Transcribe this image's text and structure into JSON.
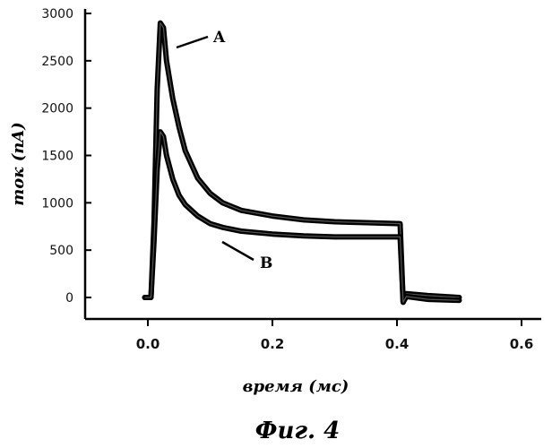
{
  "chart_data": {
    "type": "line",
    "xlabel": "время (мс)",
    "ylabel": "ток (nA)",
    "caption": "Фиг. 4",
    "xlim": [
      -0.1,
      0.6
    ],
    "ylim": [
      -200,
      3000
    ],
    "x_ticks": [
      0.0,
      0.2,
      0.4,
      0.6
    ],
    "x_tick_labels": [
      "0.0",
      "0.2",
      "0.4",
      "0.6"
    ],
    "y_ticks": [
      0,
      500,
      1000,
      1500,
      2000,
      2500,
      3000
    ],
    "y_tick_labels": [
      "0",
      "500",
      "1000",
      "1500",
      "2000",
      "2500",
      "3000"
    ],
    "grid": false,
    "legend": "none",
    "series": [
      {
        "name": "A",
        "color": "#000000",
        "x": [
          -0.005,
          0.0,
          0.005,
          0.01,
          0.015,
          0.02,
          0.025,
          0.03,
          0.04,
          0.05,
          0.06,
          0.08,
          0.1,
          0.12,
          0.15,
          0.2,
          0.25,
          0.3,
          0.35,
          0.405,
          0.41,
          0.415,
          0.45,
          0.5
        ],
        "y": [
          0,
          0,
          0,
          800,
          2200,
          2900,
          2850,
          2500,
          2100,
          1800,
          1550,
          1260,
          1100,
          1000,
          920,
          860,
          820,
          800,
          790,
          780,
          -50,
          40,
          20,
          0
        ]
      },
      {
        "name": "B",
        "color": "#000000",
        "x": [
          -0.005,
          0.0,
          0.005,
          0.01,
          0.015,
          0.02,
          0.025,
          0.03,
          0.04,
          0.05,
          0.06,
          0.08,
          0.1,
          0.12,
          0.15,
          0.2,
          0.25,
          0.3,
          0.35,
          0.405,
          0.41,
          0.415,
          0.45,
          0.5
        ],
        "y": [
          0,
          0,
          0,
          600,
          1350,
          1750,
          1700,
          1500,
          1250,
          1080,
          980,
          860,
          780,
          740,
          700,
          670,
          650,
          640,
          640,
          640,
          -50,
          10,
          -20,
          -30
        ]
      }
    ],
    "annotations": [
      {
        "text": "A",
        "series": "A"
      },
      {
        "text": "B",
        "series": "B"
      }
    ]
  }
}
